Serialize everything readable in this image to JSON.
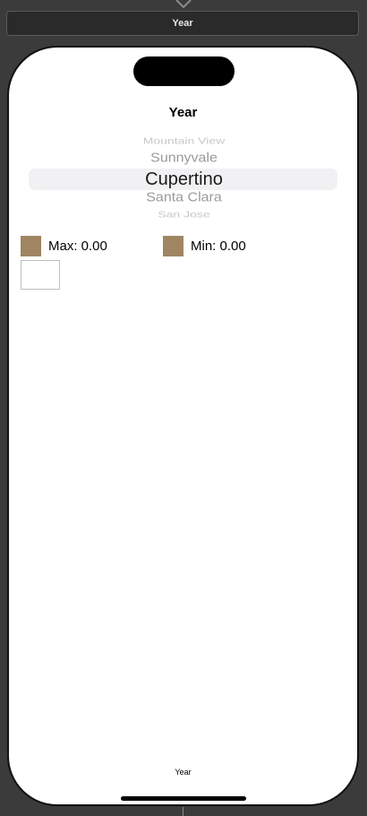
{
  "scene": {
    "bar_title": "Year"
  },
  "screen": {
    "nav_title": "Year",
    "picker": {
      "items": [
        "Mountain View",
        "Sunnyvale",
        "Cupertino",
        "Santa Clara",
        "San Jose"
      ],
      "selected": "Cupertino"
    },
    "legend": {
      "max_label": "Max: 0.00",
      "min_label": "Min: 0.00",
      "swatch_color": "#a08562"
    },
    "tab_label": "Year"
  },
  "colors": {
    "canvas_background": "#3b3b3b",
    "scene_bar_background": "#2a2a2a",
    "device_background": "#ffffff"
  },
  "icons": {
    "top_connector": "chevron-down-icon"
  }
}
